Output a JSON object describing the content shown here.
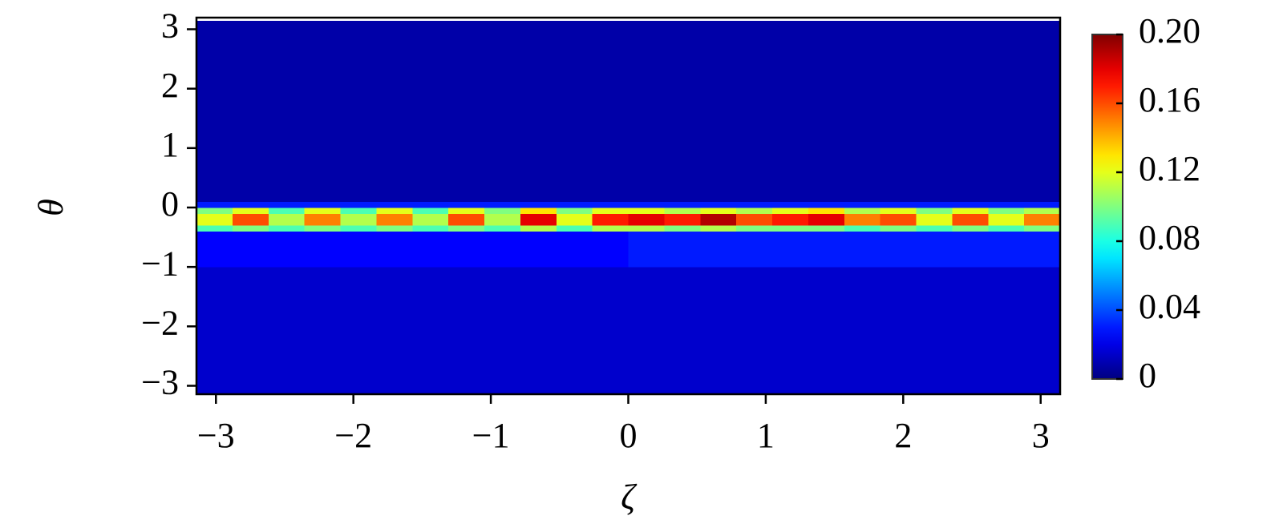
{
  "chart_data": {
    "type": "heatmap",
    "xlabel": "ζ",
    "ylabel": "θ",
    "xbins": [
      -3.1416,
      -2.8798,
      -2.618,
      -2.3562,
      -2.0944,
      -1.8326,
      -1.5708,
      -1.309,
      -1.0472,
      -0.7854,
      -0.5236,
      -0.2618,
      0,
      0.2618,
      0.5236,
      0.7854,
      1.0472,
      1.309,
      1.5708,
      1.8326,
      2.0944,
      2.3562,
      2.618,
      2.8798,
      3.1416
    ],
    "ybins": [
      -3.1416,
      -1.0,
      -0.4,
      -0.3,
      -0.1,
      0.0,
      0.1,
      3.1416
    ],
    "values": [
      [
        0.015,
        0.015,
        0.015,
        0.015,
        0.015,
        0.015,
        0.015,
        0.015,
        0.015,
        0.015,
        0.015,
        0.015,
        0.015,
        0.015,
        0.015,
        0.015,
        0.015,
        0.015,
        0.015,
        0.015,
        0.015,
        0.015,
        0.015,
        0.015
      ],
      [
        0.025,
        0.025,
        0.025,
        0.025,
        0.025,
        0.025,
        0.025,
        0.025,
        0.025,
        0.025,
        0.025,
        0.025,
        0.03,
        0.03,
        0.03,
        0.03,
        0.03,
        0.03,
        0.03,
        0.03,
        0.03,
        0.03,
        0.03,
        0.03
      ],
      [
        0.09,
        0.1,
        0.09,
        0.1,
        0.09,
        0.1,
        0.09,
        0.1,
        0.09,
        0.11,
        0.09,
        0.11,
        0.11,
        0.1,
        0.11,
        0.1,
        0.1,
        0.1,
        0.09,
        0.1,
        0.09,
        0.1,
        0.09,
        0.1
      ],
      [
        0.12,
        0.16,
        0.11,
        0.15,
        0.11,
        0.15,
        0.11,
        0.16,
        0.11,
        0.18,
        0.12,
        0.17,
        0.18,
        0.17,
        0.19,
        0.16,
        0.17,
        0.18,
        0.15,
        0.16,
        0.12,
        0.16,
        0.12,
        0.15
      ],
      [
        0.1,
        0.12,
        0.09,
        0.12,
        0.09,
        0.12,
        0.09,
        0.12,
        0.1,
        0.13,
        0.1,
        0.12,
        0.12,
        0.11,
        0.12,
        0.11,
        0.12,
        0.13,
        0.11,
        0.12,
        0.1,
        0.12,
        0.1,
        0.11
      ],
      [
        0.03,
        0.03,
        0.03,
        0.03,
        0.03,
        0.03,
        0.03,
        0.03,
        0.03,
        0.03,
        0.03,
        0.03,
        0.03,
        0.03,
        0.03,
        0.03,
        0.03,
        0.03,
        0.03,
        0.03,
        0.03,
        0.03,
        0.03,
        0.03
      ],
      [
        0.008,
        0.008,
        0.008,
        0.008,
        0.008,
        0.008,
        0.008,
        0.008,
        0.008,
        0.008,
        0.008,
        0.008,
        0.008,
        0.008,
        0.008,
        0.008,
        0.008,
        0.008,
        0.008,
        0.008,
        0.008,
        0.008,
        0.008,
        0.008
      ]
    ],
    "colormap": "jet",
    "clim": [
      0,
      0.2
    ],
    "xlim": [
      -3.1416,
      3.1416
    ],
    "ylim": [
      -3.1416,
      3.1416
    ],
    "xticks": [
      {
        "value": -3,
        "label": "−3"
      },
      {
        "value": -2,
        "label": "−2"
      },
      {
        "value": -1,
        "label": "−1"
      },
      0,
      1,
      2,
      3
    ],
    "yticks": [
      {
        "value": -3,
        "label": "−3"
      },
      {
        "value": -2,
        "label": "−2"
      },
      {
        "value": -1,
        "label": "−1"
      },
      0,
      1,
      2,
      3
    ],
    "cticks": [
      0,
      0.04,
      0.08,
      0.12,
      0.16,
      {
        "value": 0.2,
        "label": "0.20"
      }
    ]
  }
}
